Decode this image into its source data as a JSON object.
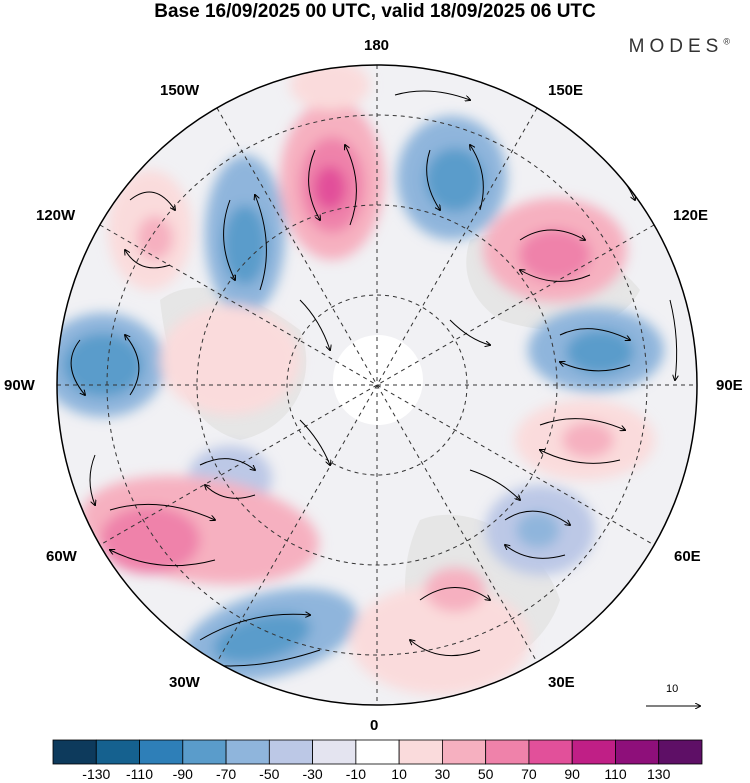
{
  "header": {
    "title": "Base 16/09/2025 00 UTC, valid 18/09/2025 06 UTC",
    "brand": "MODES",
    "brand_mark": "®"
  },
  "map": {
    "longitude_labels": {
      "top": "180",
      "bottom": "0",
      "left": "90W",
      "right": "90E",
      "upper_left_1": "150W",
      "upper_left_2": "120W",
      "upper_right_1": "150E",
      "upper_right_2": "120E",
      "lower_left_1": "60W",
      "lower_left_2": "30W",
      "lower_right_1": "60E",
      "lower_right_2": "30E"
    },
    "vector_scale_label": "10"
  },
  "colorbar": {
    "labels": [
      "-130",
      "-110",
      "-90",
      "-70",
      "-50",
      "-30",
      "-10",
      "10",
      "30",
      "50",
      "70",
      "90",
      "110",
      "130"
    ],
    "colors": [
      "#0d3a5c",
      "#15618f",
      "#2e7fb8",
      "#5a9ccb",
      "#8fb5dc",
      "#bcc8e6",
      "#e4e4f0",
      "#ffffff",
      "#fadbdc",
      "#f6b0c0",
      "#ef82aa",
      "#e2509a",
      "#c01f86",
      "#8e0f7a",
      "#5e0f66"
    ]
  },
  "colors": {
    "land": "#ececec",
    "background": "#ffffff",
    "negative": "#5a9ccb",
    "positive": "#ef82aa"
  }
}
